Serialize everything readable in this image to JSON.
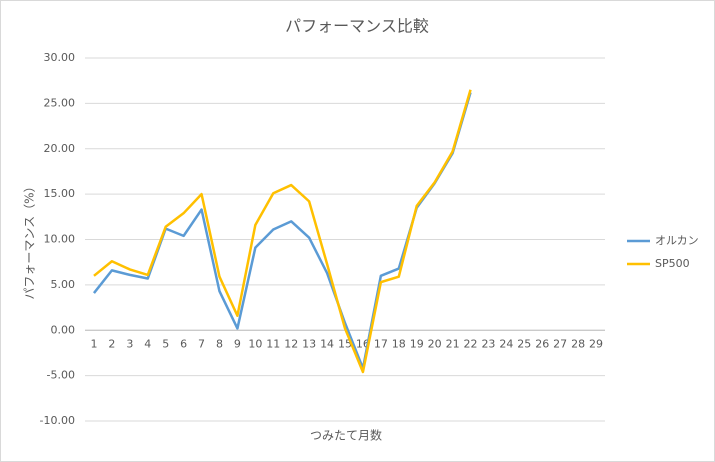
{
  "chart_data": {
    "type": "line",
    "title": "パフォーマンス比較",
    "x_label": "つみたて月数",
    "y_label": "パフォーマンス（%）",
    "categories": [
      1,
      2,
      3,
      4,
      5,
      6,
      7,
      8,
      9,
      10,
      11,
      12,
      13,
      14,
      15,
      16,
      17,
      18,
      19,
      20,
      21,
      22,
      23,
      24,
      25,
      26,
      27,
      28,
      29
    ],
    "series": [
      {
        "name": "オルカン",
        "color": "#5b9bd5",
        "values": [
          4.1,
          6.6,
          6.1,
          5.7,
          11.2,
          10.4,
          13.3,
          4.3,
          0.2,
          9.1,
          11.1,
          12.0,
          10.2,
          6.3,
          0.8,
          -4.2,
          6.0,
          6.8,
          13.5,
          16.2,
          19.5,
          26.2,
          null,
          null,
          null,
          null,
          null,
          null,
          null
        ]
      },
      {
        "name": "SP500",
        "color": "#ffc000",
        "values": [
          6.0,
          7.6,
          6.7,
          6.1,
          11.4,
          12.9,
          15.0,
          5.9,
          1.6,
          11.6,
          15.1,
          16.0,
          14.2,
          7.3,
          0.2,
          -4.6,
          5.3,
          5.9,
          13.7,
          16.3,
          19.7,
          26.5,
          null,
          null,
          null,
          null,
          null,
          null,
          null
        ]
      }
    ],
    "ylim": [
      -10,
      30
    ],
    "yticks": [
      {
        "value": -10,
        "label": "-10.00"
      },
      {
        "value": -5,
        "label": "-5.00"
      },
      {
        "value": 0,
        "label": "0.00"
      },
      {
        "value": 5,
        "label": "5.00"
      },
      {
        "value": 10,
        "label": "10.00"
      },
      {
        "value": 15,
        "label": "15.00"
      },
      {
        "value": 20,
        "label": "20.00"
      },
      {
        "value": 25,
        "label": "25.00"
      },
      {
        "value": 30,
        "label": "30.00"
      }
    ],
    "grid": true,
    "legend": "right"
  }
}
